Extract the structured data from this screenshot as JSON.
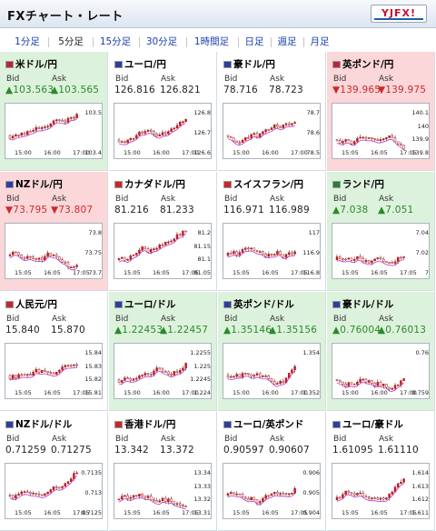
{
  "header": {
    "title": "FXチャート・レート",
    "logo_text": "YJFX!"
  },
  "tabs": [
    {
      "label": "1分足"
    },
    {
      "label": "5分足"
    },
    {
      "label": "15分足"
    },
    {
      "label": "30分足"
    },
    {
      "label": "1時間足"
    },
    {
      "label": "日足"
    },
    {
      "label": "週足"
    },
    {
      "label": "月足"
    }
  ],
  "active_tab": "5分足",
  "labels": {
    "bid": "Bid",
    "ask": "Ask"
  },
  "colors": {
    "up": "#2a8a2a",
    "down": "#d02828",
    "bull_candle": "#ffffff",
    "bear_candle": "#d21d1d",
    "ma_line": "#c036c6"
  },
  "pairs": [
    {
      "name": "米ドル/円",
      "trend": "up",
      "bid": "▲103.563",
      "ask": "▲103.565",
      "yticks": [
        "103.5",
        "103.4"
      ],
      "xticks": [
        "15:00",
        "16:00",
        "17:00"
      ]
    },
    {
      "name": "ユーロ/円",
      "trend": "flat",
      "bid": "126.816",
      "ask": "126.821",
      "yticks": [
        "126.8",
        "126.7",
        "126.6"
      ],
      "xticks": [
        "15:00",
        "16:00",
        "17:00"
      ]
    },
    {
      "name": "豪ドル/円",
      "trend": "flat",
      "bid": "78.716",
      "ask": "78.723",
      "yticks": [
        "78.7",
        "78.6",
        "78.5"
      ],
      "xticks": [
        "15:00",
        "16:00",
        "17:00"
      ]
    },
    {
      "name": "英ポンド/円",
      "trend": "down",
      "bid": "▼139.965",
      "ask": "▼139.975",
      "yticks": [
        "140.1",
        "140",
        "139.9",
        "139.8"
      ],
      "xticks": [
        "15:05",
        "16:05",
        "17:05"
      ]
    },
    {
      "name": "NZドル/円",
      "trend": "down",
      "bid": "▼73.795",
      "ask": "▼73.807",
      "yticks": [
        "73.8",
        "73.75",
        "73.7"
      ],
      "xticks": [
        "15:05",
        "16:05",
        "17:05"
      ]
    },
    {
      "name": "カナダドル/円",
      "trend": "flat",
      "bid": "81.216",
      "ask": "81.233",
      "yticks": [
        "81.2",
        "81.15",
        "81.1",
        "81.05"
      ],
      "xticks": [
        "15:05",
        "16:05",
        "17:05"
      ]
    },
    {
      "name": "スイスフラン/円",
      "trend": "flat",
      "bid": "116.971",
      "ask": "116.989",
      "yticks": [
        "117",
        "116.9",
        "116.8"
      ],
      "xticks": [
        "15:05",
        "16:05",
        "17:05"
      ]
    },
    {
      "name": "ランド/円",
      "trend": "up",
      "bid": "▲7.038",
      "ask": "▲7.051",
      "yticks": [
        "7.04",
        "7.02",
        "7"
      ],
      "xticks": [
        "15:05",
        "16:05",
        "17:05"
      ]
    },
    {
      "name": "人民元/円",
      "trend": "flat",
      "bid": "15.840",
      "ask": "15.870",
      "yticks": [
        "15.84",
        "15.83",
        "15.82",
        "15.81"
      ],
      "xticks": [
        "15:05",
        "16:05",
        "17:05"
      ]
    },
    {
      "name": "ユーロ/ドル",
      "trend": "up",
      "bid": "▲1.22453",
      "ask": "▲1.22457",
      "yticks": [
        "1.2255",
        "1.225",
        "1.2245",
        "1.224"
      ],
      "xticks": [
        "15:00",
        "16:00",
        "17:00"
      ]
    },
    {
      "name": "英ポンド/ドル",
      "trend": "up",
      "bid": "▲1.35146",
      "ask": "▲1.35156",
      "yticks": [
        "1.354",
        "1.352"
      ],
      "xticks": [
        "15:00",
        "16:00",
        "17:00"
      ]
    },
    {
      "name": "豪ドル/ドル",
      "trend": "up",
      "bid": "▲0.76004",
      "ask": "▲0.76013",
      "yticks": [
        "0.76",
        "0.759"
      ],
      "xticks": [
        "15:00",
        "16:00",
        "17:00"
      ]
    },
    {
      "name": "NZドル/ドル",
      "trend": "flat",
      "bid": "0.71259",
      "ask": "0.71275",
      "yticks": [
        "0.7135",
        "0.713",
        "0.7125"
      ],
      "xticks": [
        "15:05",
        "16:05",
        "17:05"
      ]
    },
    {
      "name": "香港ドル/円",
      "trend": "flat",
      "bid": "13.342",
      "ask": "13.372",
      "yticks": [
        "13.34",
        "13.33",
        "13.32",
        "13.31"
      ],
      "xticks": [
        "15:05",
        "16:05",
        "17:05"
      ]
    },
    {
      "name": "ユーロ/英ポンド",
      "trend": "flat",
      "bid": "0.90597",
      "ask": "0.90607",
      "yticks": [
        "0.906",
        "0.905",
        "0.904"
      ],
      "xticks": [
        "15:05",
        "16:05",
        "17:05"
      ]
    },
    {
      "name": "ユーロ/豪ドル",
      "trend": "flat",
      "bid": "1.61095",
      "ask": "1.61110",
      "yticks": [
        "1.614",
        "1.613",
        "1.612",
        "1.611"
      ],
      "xticks": [
        "15:05",
        "16:05",
        "17:05"
      ]
    }
  ]
}
